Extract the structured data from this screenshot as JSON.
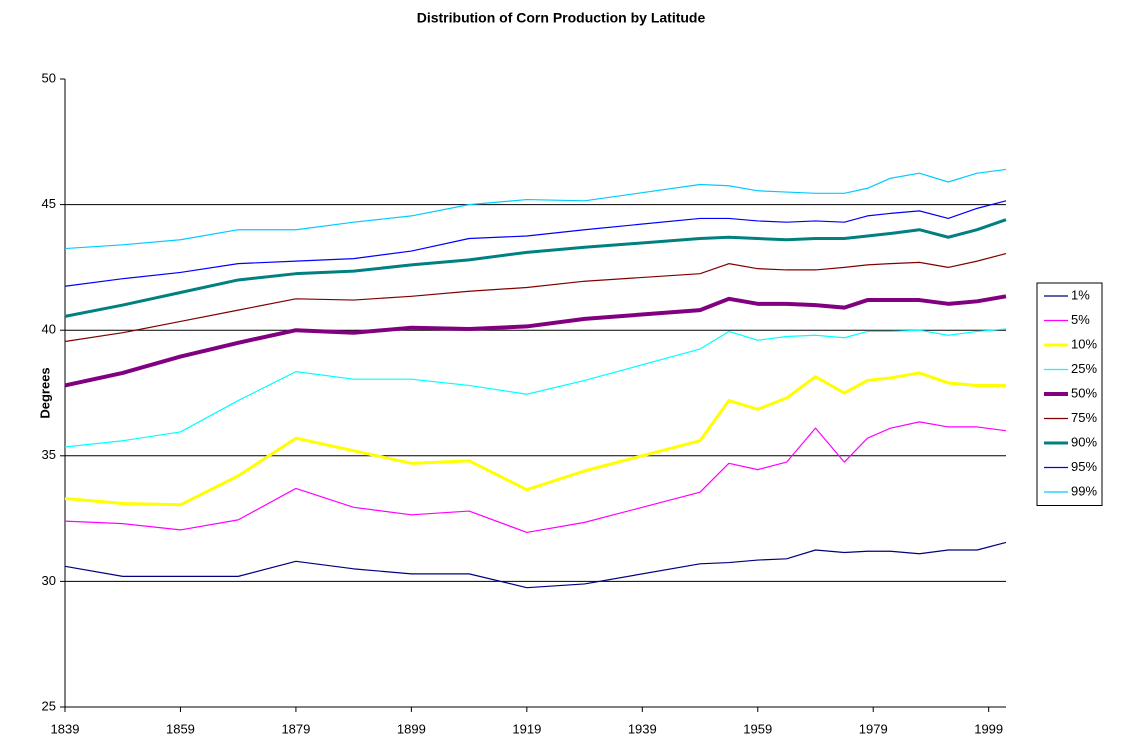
{
  "chart_data": {
    "type": "line",
    "title": "Distribution of Corn Production by Latitude",
    "y_label": "Degrees",
    "x": [
      1839,
      1849,
      1859,
      1869,
      1879,
      1889,
      1899,
      1909,
      1919,
      1929,
      1949,
      1954,
      1959,
      1964,
      1969,
      1974,
      1978,
      1982,
      1987,
      1992,
      1997,
      2002
    ],
    "xlim": [
      1839,
      2002
    ],
    "xticks": [
      1839,
      1859,
      1879,
      1899,
      1919,
      1939,
      1959,
      1979,
      1999
    ],
    "ylim": [
      25,
      50
    ],
    "yticks": [
      25,
      30,
      35,
      40,
      45,
      50
    ],
    "grid": true,
    "legend": "right",
    "series": [
      {
        "name": "1%",
        "color": "#000080",
        "line_width": 1.2,
        "values": [
          30.6,
          30.2,
          30.2,
          30.2,
          30.8,
          30.5,
          30.3,
          30.3,
          29.75,
          29.9,
          30.7,
          30.75,
          30.85,
          30.9,
          31.25,
          31.15,
          31.2,
          31.2,
          31.1,
          31.25,
          31.25,
          31.55
        ]
      },
      {
        "name": "5%",
        "color": "#ff00ff",
        "line_width": 1.2,
        "values": [
          32.4,
          32.3,
          32.05,
          32.45,
          33.7,
          32.95,
          32.65,
          32.8,
          31.95,
          32.35,
          33.55,
          34.7,
          34.45,
          34.75,
          36.1,
          34.75,
          35.7,
          36.1,
          36.35,
          36.15,
          36.15,
          36.0
        ]
      },
      {
        "name": "10%",
        "color": "#ffff00",
        "line_width": 3,
        "values": [
          33.3,
          33.1,
          33.05,
          34.2,
          35.7,
          35.2,
          34.7,
          34.8,
          33.65,
          34.4,
          35.6,
          37.2,
          36.85,
          37.3,
          38.15,
          37.5,
          38.0,
          38.1,
          38.3,
          37.9,
          37.8,
          37.8
        ]
      },
      {
        "name": "25%",
        "color": "#00ffff",
        "line_width": 1.2,
        "values": [
          35.35,
          35.6,
          35.95,
          37.2,
          38.35,
          38.05,
          38.05,
          37.8,
          37.45,
          38.0,
          39.25,
          39.95,
          39.6,
          39.75,
          39.8,
          39.7,
          39.95,
          39.95,
          40.0,
          39.8,
          39.95,
          40.05
        ]
      },
      {
        "name": "50%",
        "color": "#800080",
        "line_width": 4,
        "values": [
          37.8,
          38.3,
          38.95,
          39.5,
          40.0,
          39.9,
          40.1,
          40.05,
          40.15,
          40.45,
          40.8,
          41.25,
          41.05,
          41.05,
          41.0,
          40.9,
          41.2,
          41.2,
          41.2,
          41.05,
          41.15,
          41.35
        ]
      },
      {
        "name": "75%",
        "color": "#800000",
        "line_width": 1.2,
        "values": [
          39.55,
          39.9,
          40.35,
          40.8,
          41.25,
          41.2,
          41.35,
          41.55,
          41.7,
          41.95,
          42.25,
          42.65,
          42.45,
          42.4,
          42.4,
          42.5,
          42.6,
          42.65,
          42.7,
          42.5,
          42.75,
          43.05
        ]
      },
      {
        "name": "90%",
        "color": "#008080",
        "line_width": 3,
        "values": [
          40.55,
          41.0,
          41.5,
          42.0,
          42.25,
          42.35,
          42.6,
          42.8,
          43.1,
          43.3,
          43.65,
          43.7,
          43.65,
          43.6,
          43.65,
          43.65,
          43.75,
          43.85,
          44.0,
          43.7,
          44.0,
          44.4
        ]
      },
      {
        "name": "95%",
        "color": "#0000ff",
        "line_width": 1.2,
        "values": [
          41.75,
          42.05,
          42.3,
          42.65,
          42.75,
          42.85,
          43.15,
          43.65,
          43.75,
          44.0,
          44.45,
          44.45,
          44.35,
          44.3,
          44.35,
          44.3,
          44.55,
          44.65,
          44.75,
          44.45,
          44.85,
          45.15
        ]
      },
      {
        "name": "99%",
        "color": "#00ccff",
        "line_width": 1.2,
        "values": [
          43.25,
          43.4,
          43.6,
          44.0,
          44.0,
          44.3,
          44.55,
          45.0,
          45.2,
          45.15,
          45.8,
          45.75,
          45.55,
          45.5,
          45.45,
          45.45,
          45.65,
          46.05,
          46.25,
          45.9,
          46.25,
          46.4
        ]
      }
    ]
  }
}
